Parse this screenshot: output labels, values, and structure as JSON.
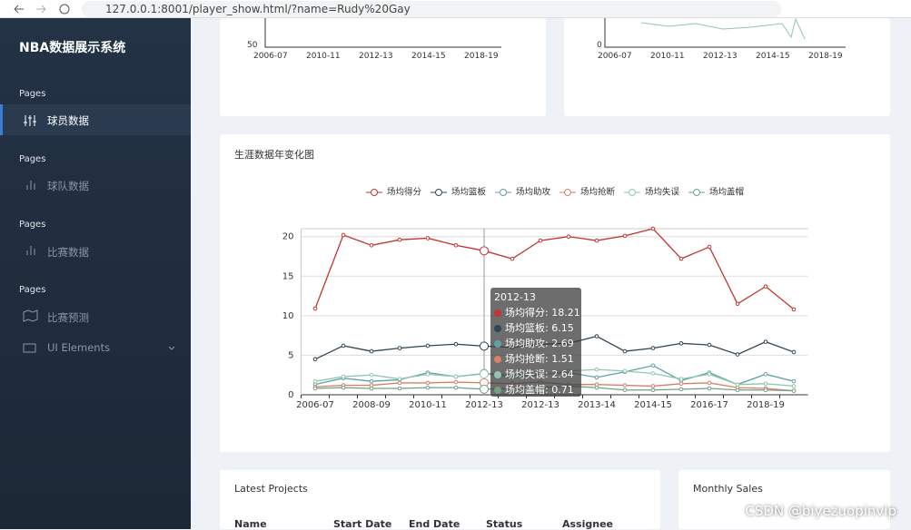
{
  "browser": {
    "url": "127.0.0.1:8001/player_show.html/?name=Rudy%20Gay"
  },
  "sidebar": {
    "brand": "NBA数据展示系统",
    "menu": [
      {
        "section": "Pages",
        "label": "球员数据"
      },
      {
        "section": "Pages",
        "label": "球队数据"
      },
      {
        "section": "Pages",
        "label": "比赛数据"
      },
      {
        "section": "Pages",
        "label": "比赛预测"
      }
    ],
    "extra": "UI Elements"
  },
  "top_cards": [
    {
      "ylabel": "50",
      "xlabels": [
        "2006-07",
        "2010-11",
        "2012-13",
        "2014-15",
        "2018-19"
      ]
    },
    {
      "ylabel": "0",
      "xlabels": [
        "2006-07",
        "2010-11",
        "2012-13",
        "2014-15",
        "2018-19"
      ]
    }
  ],
  "chart_data": {
    "type": "line",
    "title": "生涯数据年变化图",
    "categories": [
      "2006-07",
      null,
      "2008-09",
      null,
      "2010-11",
      null,
      "2012-13",
      null,
      "2012-13",
      null,
      "2013-14",
      null,
      "2014-15",
      null,
      "2016-17",
      null,
      "2018-19",
      null
    ],
    "series": [
      {
        "name": "场均得分",
        "color": "#c23531",
        "values": [
          10.9,
          20.2,
          18.9,
          19.6,
          19.8,
          18.9,
          18.21,
          17.2,
          19.5,
          20.0,
          19.5,
          20.1,
          21.0,
          17.2,
          18.7,
          11.5,
          13.7,
          10.8
        ]
      },
      {
        "name": "场均篮板",
        "color": "#2f4554",
        "values": [
          4.5,
          6.2,
          5.5,
          5.9,
          6.2,
          6.4,
          6.15,
          6.0,
          6.4,
          6.5,
          7.4,
          5.5,
          5.9,
          6.5,
          6.3,
          5.1,
          6.7,
          5.4
        ]
      },
      {
        "name": "场均助攻",
        "color": "#61a0a8",
        "values": [
          1.3,
          2.1,
          1.7,
          1.9,
          2.8,
          2.3,
          2.69,
          2.5,
          2.6,
          2.8,
          2.2,
          2.9,
          3.7,
          1.8,
          2.8,
          1.3,
          2.6,
          1.7
        ]
      },
      {
        "name": "场均抢断",
        "color": "#d48265",
        "values": [
          1.0,
          1.2,
          1.2,
          1.5,
          1.5,
          1.6,
          1.51,
          1.4,
          1.6,
          1.3,
          1.3,
          1.2,
          1.1,
          1.4,
          1.5,
          0.9,
          0.8,
          0.5
        ]
      },
      {
        "name": "场均失误",
        "color": "#91c7ae",
        "values": [
          1.7,
          2.3,
          2.5,
          2.0,
          2.6,
          2.3,
          2.64,
          2.2,
          2.5,
          3.0,
          3.2,
          3.0,
          2.7,
          2.0,
          2.6,
          1.3,
          1.4,
          1.1
        ]
      },
      {
        "name": "场均盖帽",
        "color": "#749f83",
        "values": [
          0.8,
          0.9,
          0.8,
          0.8,
          0.9,
          0.9,
          0.71,
          0.8,
          0.9,
          1.1,
          0.9,
          0.6,
          0.6,
          0.7,
          0.8,
          0.6,
          0.6,
          0.5
        ]
      }
    ],
    "ylim": [
      0,
      21
    ],
    "yticks": [
      0,
      5,
      10,
      15,
      20
    ],
    "grid": true,
    "tooltip": {
      "index": 6,
      "title": "2012-13",
      "items": [
        "场均得分: 18.21",
        "场均篮板: 6.15",
        "场均助攻: 2.69",
        "场均抢断: 1.51",
        "场均失误: 2.64",
        "场均盖帽: 0.71"
      ]
    }
  },
  "bottom": {
    "projects_title": "Latest Projects",
    "headers": [
      "Name",
      "Start Date",
      "End Date",
      "Status",
      "Assignee"
    ],
    "sales_title": "Monthly Sales"
  },
  "watermark": "CSDN @biyezuopinvip"
}
